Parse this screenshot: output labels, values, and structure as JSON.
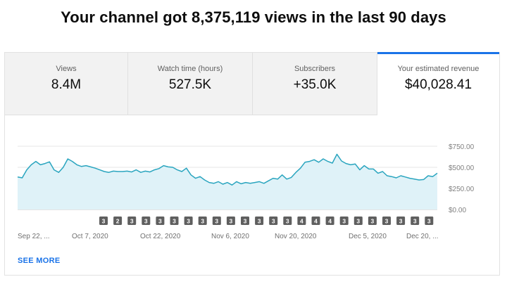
{
  "headline": "Your channel got 8,375,119 views in the last 90 days",
  "tabs": [
    {
      "label": "Views",
      "value": "8.4M"
    },
    {
      "label": "Watch time (hours)",
      "value": "527.5K"
    },
    {
      "label": "Subscribers",
      "value": "+35.0K"
    },
    {
      "label": "Your estimated revenue",
      "value": "$40,028.41"
    }
  ],
  "active_tab": 3,
  "see_more_label": "SEE MORE",
  "colors": {
    "accent": "#1a73e8",
    "line": "#2aa5bf",
    "fill": "#dff2f8",
    "badge": "#5f5f5f"
  },
  "chart_data": {
    "type": "area",
    "x_tick_labels": [
      "Sep 22, ...",
      "Oct 7, 2020",
      "Oct 22, 2020",
      "Nov 6, 2020",
      "Nov 20, 2020",
      "Dec 5, 2020",
      "Dec 20, ..."
    ],
    "y_tick_labels": [
      "$750.00",
      "$500.00",
      "$250.00",
      "$0.00"
    ],
    "ylim": [
      0,
      750
    ],
    "grid": true,
    "values": [
      385,
      375,
      470,
      530,
      570,
      530,
      545,
      565,
      470,
      440,
      500,
      600,
      570,
      530,
      510,
      520,
      505,
      490,
      470,
      450,
      440,
      455,
      450,
      450,
      455,
      445,
      470,
      440,
      455,
      445,
      470,
      485,
      520,
      505,
      500,
      470,
      450,
      490,
      410,
      370,
      390,
      350,
      320,
      310,
      330,
      300,
      320,
      290,
      330,
      305,
      320,
      310,
      320,
      330,
      310,
      340,
      370,
      360,
      410,
      360,
      380,
      440,
      490,
      560,
      570,
      590,
      560,
      600,
      570,
      550,
      655,
      575,
      545,
      530,
      540,
      470,
      520,
      480,
      480,
      430,
      450,
      400,
      390,
      375,
      400,
      385,
      370,
      360,
      350,
      355,
      400,
      390,
      430
    ],
    "annotation_badges": [
      "3",
      "2",
      "3",
      "3",
      "3",
      "3",
      "3",
      "3",
      "3",
      "3",
      "3",
      "3",
      "3",
      "3",
      "4",
      "4",
      "4",
      "3",
      "3",
      "3",
      "3",
      "3",
      "3",
      "3"
    ]
  }
}
